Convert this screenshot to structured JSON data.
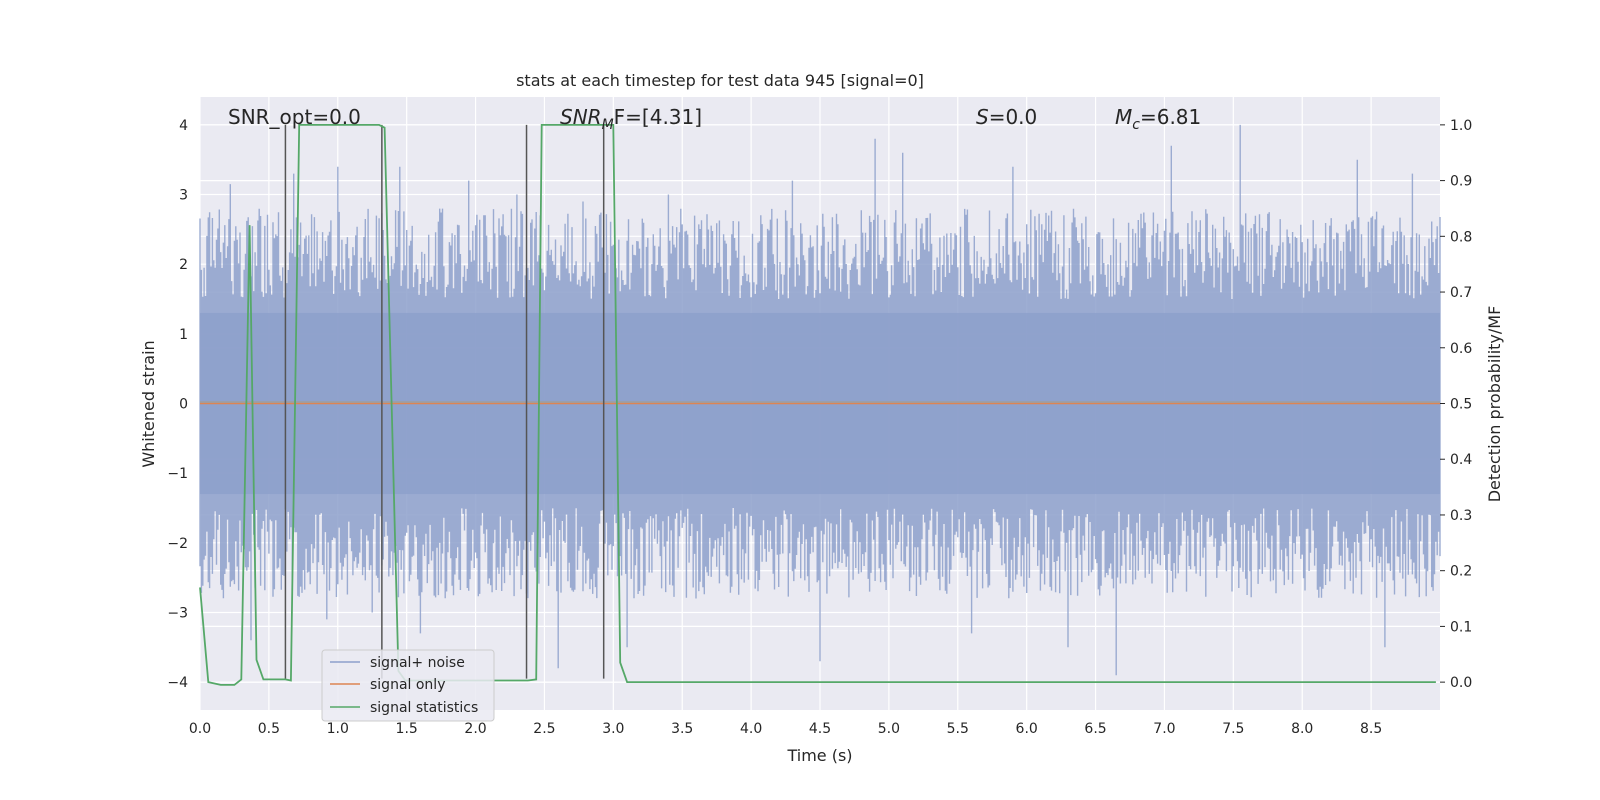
{
  "chart_data": {
    "type": "line",
    "title": "stats at each timestep for test data 945 [signal=0]",
    "xlabel": "Time (s)",
    "ylabel_left": "Whitened strain",
    "ylabel_right": "Detection probability/MF",
    "xlim": [
      0.0,
      9.0
    ],
    "ylim_left": [
      -4.4,
      4.4
    ],
    "ylim_right": [
      -0.05,
      1.05
    ],
    "x_ticks": [
      "0.0",
      "0.5",
      "1.0",
      "1.5",
      "2.0",
      "2.5",
      "3.0",
      "3.5",
      "4.0",
      "4.5",
      "5.0",
      "5.5",
      "6.0",
      "6.5",
      "7.0",
      "7.5",
      "8.0",
      "8.5"
    ],
    "y_ticks_left": [
      "4",
      "3",
      "2",
      "1",
      "0",
      "−1",
      "−2",
      "−3",
      "−4"
    ],
    "y_ticks_right": [
      "1.0",
      "0.9",
      "0.8",
      "0.7",
      "0.6",
      "0.5",
      "0.4",
      "0.3",
      "0.2",
      "0.1",
      "0.0"
    ],
    "grid": true,
    "legend_position": "lower-left",
    "annotations": {
      "snr_opt": "SNR_opt=0.0",
      "snr_mf_main": "SNR",
      "snr_mf_sub": "M",
      "snr_mf_rest": "F=[4.31]",
      "s_main": "S",
      "s_rest": "=0.0",
      "mc_main": "M",
      "mc_sub": "c",
      "mc_rest": "=6.81"
    },
    "series": [
      {
        "name": "signal+ noise",
        "axis": "left",
        "color": "#8da0cb",
        "envelope_upper_typical": 2.0,
        "envelope_lower_typical": -2.0,
        "peak_values": [
          {
            "x": 0.22,
            "y": 3.15
          },
          {
            "x": 0.37,
            "y": -3.4
          },
          {
            "x": 0.47,
            "y": 2.55
          },
          {
            "x": 0.68,
            "y": 3.3
          },
          {
            "x": 0.92,
            "y": -3.1
          },
          {
            "x": 1.0,
            "y": 3.4
          },
          {
            "x": 1.25,
            "y": -3.0
          },
          {
            "x": 1.45,
            "y": 3.4
          },
          {
            "x": 1.6,
            "y": -3.3
          },
          {
            "x": 1.95,
            "y": 3.2
          },
          {
            "x": 2.3,
            "y": 3.0
          },
          {
            "x": 2.6,
            "y": -3.8
          },
          {
            "x": 2.78,
            "y": 2.9
          },
          {
            "x": 3.1,
            "y": -3.5
          },
          {
            "x": 3.4,
            "y": 3.0
          },
          {
            "x": 4.3,
            "y": 3.2
          },
          {
            "x": 4.5,
            "y": -3.7
          },
          {
            "x": 4.9,
            "y": 3.8
          },
          {
            "x": 5.1,
            "y": 3.6
          },
          {
            "x": 5.6,
            "y": -3.3
          },
          {
            "x": 5.9,
            "y": 3.4
          },
          {
            "x": 6.3,
            "y": -3.5
          },
          {
            "x": 6.65,
            "y": -3.9
          },
          {
            "x": 7.05,
            "y": 3.7
          },
          {
            "x": 7.55,
            "y": 4.0
          },
          {
            "x": 8.4,
            "y": 3.5
          },
          {
            "x": 8.6,
            "y": -3.5
          },
          {
            "x": 8.8,
            "y": 3.3
          }
        ]
      },
      {
        "name": "signal only",
        "axis": "left",
        "color": "#dd8452",
        "x": [
          0.0,
          9.0
        ],
        "y": [
          0.0,
          0.0
        ]
      },
      {
        "name": "signal statistics",
        "axis": "right",
        "color": "#55a868",
        "x": [
          0.0,
          0.06,
          0.15,
          0.25,
          0.3,
          0.36,
          0.41,
          0.46,
          0.5,
          0.55,
          0.62,
          0.66,
          0.72,
          0.78,
          1.2,
          1.3,
          1.34,
          1.44,
          1.49,
          1.54,
          2.33,
          2.38,
          2.44,
          2.48,
          2.9,
          2.95,
          3.0,
          3.05,
          3.1,
          8.97
        ],
        "y": [
          0.17,
          0.0,
          -0.005,
          -0.005,
          0.005,
          0.82,
          0.04,
          0.005,
          0.005,
          0.005,
          0.005,
          0.003,
          1.0,
          1.0,
          1.0,
          1.0,
          0.995,
          0.02,
          0.003,
          0.003,
          0.003,
          0.003,
          0.005,
          1.0,
          1.0,
          1.0,
          1.0,
          0.035,
          0.0,
          0.0
        ]
      }
    ],
    "vertical_markers": {
      "color": "#555555",
      "x": [
        0.62,
        1.32,
        2.37,
        2.93
      ],
      "y_top": 4.0,
      "y_bottom": -3.95
    },
    "legend": [
      "signal+ noise",
      "signal only",
      "signal statistics"
    ]
  }
}
